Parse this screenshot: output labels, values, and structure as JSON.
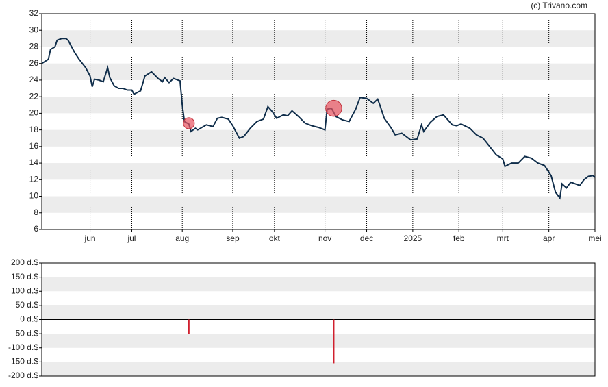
{
  "credit": "(c) Trivano.com",
  "chart_data": [
    {
      "type": "line",
      "color": "#0f2d4a",
      "x": [
        0,
        3,
        4,
        6,
        7,
        9,
        11,
        12,
        14,
        15,
        17,
        20,
        22,
        23,
        24,
        26,
        28,
        30,
        31,
        33,
        35,
        37,
        39,
        41,
        42,
        45,
        47,
        50,
        53,
        55,
        56,
        58,
        60,
        63,
        64,
        65,
        67,
        68,
        70,
        71,
        75,
        78,
        80,
        82,
        85,
        87,
        90,
        92,
        95,
        98,
        101,
        103,
        105,
        107,
        110,
        112,
        114,
        117,
        120,
        123,
        126,
        129,
        130,
        132,
        134,
        137,
        140,
        143,
        145,
        148,
        151,
        153,
        154,
        156,
        159,
        161,
        164,
        166,
        168,
        171,
        173,
        174,
        177,
        180,
        183,
        185,
        187,
        189,
        191,
        195,
        198,
        201,
        204,
        207,
        210,
        211,
        214,
        217,
        220,
        223,
        226,
        229,
        232,
        234,
        236,
        237,
        239,
        241,
        245,
        247,
        249,
        251,
        252
      ],
      "values": [
        26.0,
        26.5,
        27.7,
        28.0,
        28.8,
        29.0,
        29.0,
        28.8,
        27.8,
        27.3,
        26.5,
        25.5,
        24.5,
        23.2,
        24.1,
        24.0,
        23.8,
        25.5,
        24.3,
        23.3,
        23.0,
        23.0,
        22.8,
        22.8,
        22.3,
        22.7,
        24.5,
        25.0,
        24.2,
        23.8,
        24.3,
        23.7,
        24.2,
        23.9,
        21.0,
        19.0,
        18.7,
        17.8,
        18.2,
        18.0,
        18.6,
        18.4,
        19.4,
        19.5,
        19.3,
        18.5,
        17.0,
        17.2,
        18.2,
        19.0,
        19.3,
        20.8,
        20.2,
        19.4,
        19.8,
        19.7,
        20.3,
        19.6,
        18.8,
        18.5,
        18.3,
        18.0,
        20.5,
        20.6,
        19.6,
        19.2,
        19.0,
        20.5,
        21.9,
        21.8,
        21.2,
        21.7,
        21.0,
        19.4,
        18.3,
        17.4,
        17.6,
        17.2,
        16.8,
        16.9,
        18.6,
        17.8,
        18.9,
        19.6,
        19.8,
        19.2,
        18.6,
        18.5,
        18.7,
        18.2,
        17.4,
        17.0,
        16.0,
        15.0,
        14.5,
        13.6,
        14.0,
        14.0,
        14.8,
        14.6,
        14.0,
        13.7,
        12.5,
        10.5,
        9.8,
        11.5,
        11.0,
        11.7,
        11.3,
        12.0,
        12.4,
        12.5,
        12.3
      ],
      "markers": {
        "x": [
          67,
          133
        ],
        "values": [
          18.8,
          20.6
        ],
        "color": "#e8525f"
      },
      "xlim": [
        0,
        252
      ],
      "xticks": [
        {
          "value": 22,
          "label": "jun"
        },
        {
          "value": 41,
          "label": "jul"
        },
        {
          "value": 64,
          "label": "aug"
        },
        {
          "value": 87,
          "label": "sep"
        },
        {
          "value": 106,
          "label": "okt"
        },
        {
          "value": 129,
          "label": "nov"
        },
        {
          "value": 148,
          "label": "dec"
        },
        {
          "value": 169,
          "label": "2025"
        },
        {
          "value": 190,
          "label": "feb"
        },
        {
          "value": 210,
          "label": "mrt"
        },
        {
          "value": 231,
          "label": "apr"
        },
        {
          "value": 252,
          "label": "mei"
        }
      ],
      "ylim": [
        6,
        32
      ],
      "yticks": [
        6,
        8,
        10,
        12,
        14,
        16,
        18,
        20,
        22,
        24,
        26,
        28,
        30,
        32
      ],
      "grid": true
    },
    {
      "type": "bar",
      "color": "#d0202e",
      "x": [
        67,
        133
      ],
      "values": [
        -52,
        -155
      ],
      "xlim": [
        0,
        252
      ],
      "ylim": [
        -200,
        200
      ],
      "yticks": [
        {
          "value": -200,
          "label": "-200 d.$"
        },
        {
          "value": -150,
          "label": "-150 d.$"
        },
        {
          "value": -100,
          "label": "-100 d.$"
        },
        {
          "value": -50,
          "label": "-50 d.$"
        },
        {
          "value": 0,
          "label": "0 d.$"
        },
        {
          "value": 50,
          "label": "50 d.$"
        },
        {
          "value": 100,
          "label": "100 d.$"
        },
        {
          "value": 150,
          "label": "150 d.$"
        },
        {
          "value": 200,
          "label": "200 d.$"
        }
      ],
      "grid": true
    }
  ]
}
